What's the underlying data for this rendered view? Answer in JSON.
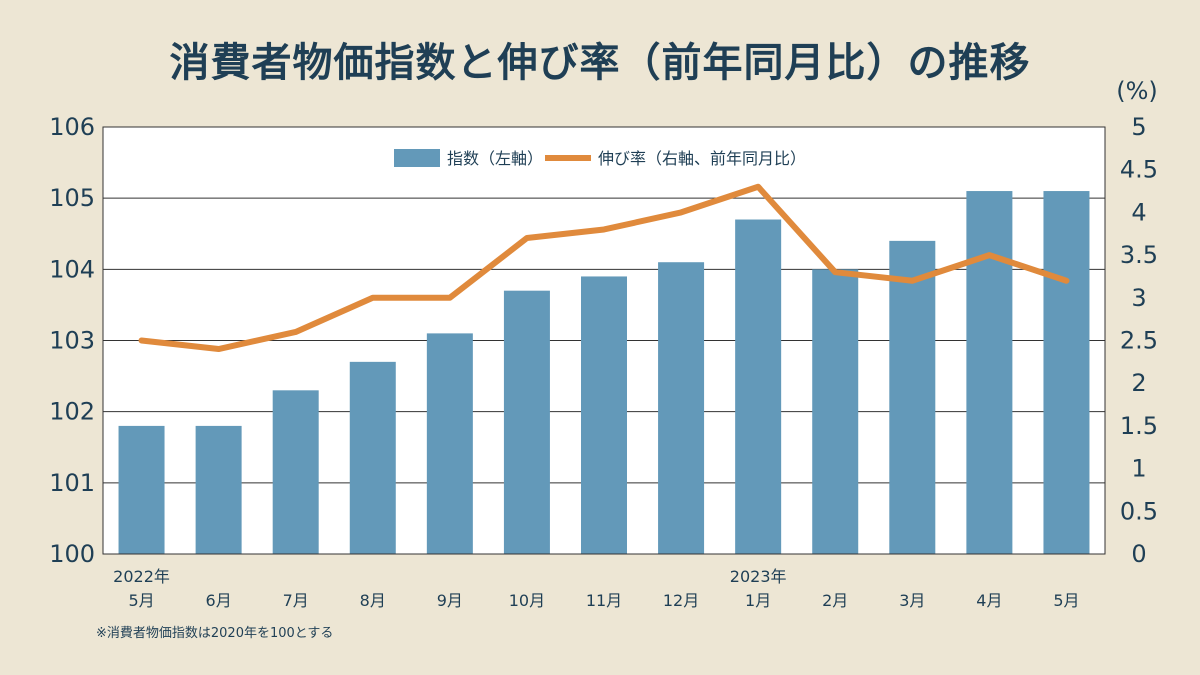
{
  "title": "消費者物価指数と伸び率（前年同月比）の推移",
  "footnote": "※消費者物価指数は2020年を100とする",
  "colors": {
    "background": "#ede6d4",
    "plot_background": "#ffffff",
    "bar": "#6399b9",
    "line": "#e08a3c",
    "text": "#1f3f55"
  },
  "chart_data": {
    "type": "bar",
    "categories": [
      "5月",
      "6月",
      "7月",
      "8月",
      "9月",
      "10月",
      "11月",
      "12月",
      "1月",
      "2月",
      "3月",
      "4月",
      "5月"
    ],
    "year_labels": [
      {
        "category_index": 0,
        "label": "2022年"
      },
      {
        "category_index": 8,
        "label": "2023年"
      }
    ],
    "series": [
      {
        "name": "指数（左軸）",
        "type": "bar",
        "axis": "left",
        "values": [
          101.8,
          101.8,
          102.3,
          102.7,
          103.1,
          103.7,
          103.9,
          104.1,
          104.7,
          104.0,
          104.4,
          105.1,
          105.1
        ]
      },
      {
        "name": "伸び率（右軸、前年同月比）",
        "type": "line",
        "axis": "right",
        "values": [
          2.5,
          2.4,
          2.6,
          3.0,
          3.0,
          3.7,
          3.8,
          4.0,
          4.3,
          3.3,
          3.2,
          3.5,
          3.2
        ]
      }
    ],
    "left_axis": {
      "ylim": [
        100,
        106
      ],
      "ticks": [
        "100",
        "101",
        "102",
        "103",
        "104",
        "105",
        "106"
      ]
    },
    "right_axis": {
      "unit": "(%)",
      "ylim": [
        0,
        5
      ],
      "ticks": [
        "0",
        "0.5",
        "1",
        "1.5",
        "2",
        "2.5",
        "3",
        "3.5",
        "4",
        "4.5",
        "5"
      ]
    },
    "grid": "horizontal",
    "legend_position": "top-center"
  }
}
